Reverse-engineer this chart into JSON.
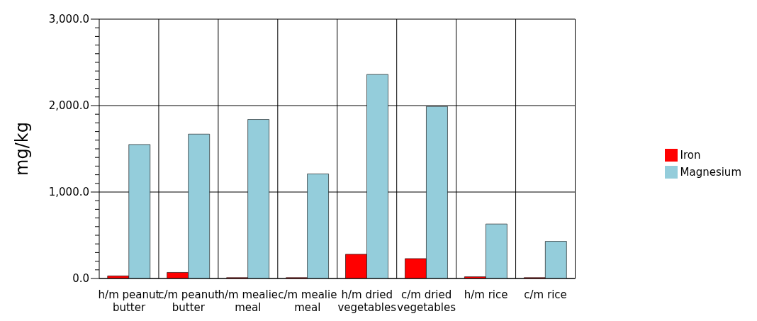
{
  "chart_data": {
    "type": "bar",
    "ylabel": "mg/kg",
    "categories": [
      "h/m peanut butter",
      "c/m peanut butter",
      "h/m mealie meal",
      "c/m mealie meal",
      "h/m dried vegetables",
      "c/m dried vegetables",
      "h/m rice",
      "c/m rice"
    ],
    "series": [
      {
        "name": "Iron",
        "color": "#ff0000",
        "values": [
          30,
          70,
          10,
          10,
          280,
          230,
          20,
          10
        ]
      },
      {
        "name": "Magnesium",
        "color": "#94cddb",
        "values": [
          1550,
          1670,
          1840,
          1210,
          2360,
          1990,
          630,
          430
        ]
      }
    ],
    "ylim": [
      0,
      3000
    ],
    "yticks": [
      {
        "value": 0,
        "label": "0.0"
      },
      {
        "value": 100,
        "label": null
      },
      {
        "value": 200,
        "label": null
      },
      {
        "value": 300,
        "label": null
      },
      {
        "value": 400,
        "label": null
      },
      {
        "value": 500,
        "label": null
      },
      {
        "value": 600,
        "label": null
      },
      {
        "value": 700,
        "label": null
      },
      {
        "value": 800,
        "label": null
      },
      {
        "value": 900,
        "label": null
      },
      {
        "value": 1000,
        "label": "1,000.0"
      },
      {
        "value": 1100,
        "label": null
      },
      {
        "value": 1200,
        "label": null
      },
      {
        "value": 1300,
        "label": null
      },
      {
        "value": 1400,
        "label": null
      },
      {
        "value": 1500,
        "label": null
      },
      {
        "value": 1600,
        "label": null
      },
      {
        "value": 1700,
        "label": null
      },
      {
        "value": 1800,
        "label": null
      },
      {
        "value": 1900,
        "label": null
      },
      {
        "value": 2000,
        "label": "2,000.0"
      },
      {
        "value": 2100,
        "label": null
      },
      {
        "value": 2200,
        "label": null
      },
      {
        "value": 2300,
        "label": null
      },
      {
        "value": 2400,
        "label": null
      },
      {
        "value": 2500,
        "label": null
      },
      {
        "value": 2600,
        "label": null
      },
      {
        "value": 2700,
        "label": null
      },
      {
        "value": 2800,
        "label": null
      },
      {
        "value": 2900,
        "label": null
      },
      {
        "value": 3000,
        "label": "3,000.0"
      }
    ],
    "grid": true,
    "legend": "right"
  }
}
